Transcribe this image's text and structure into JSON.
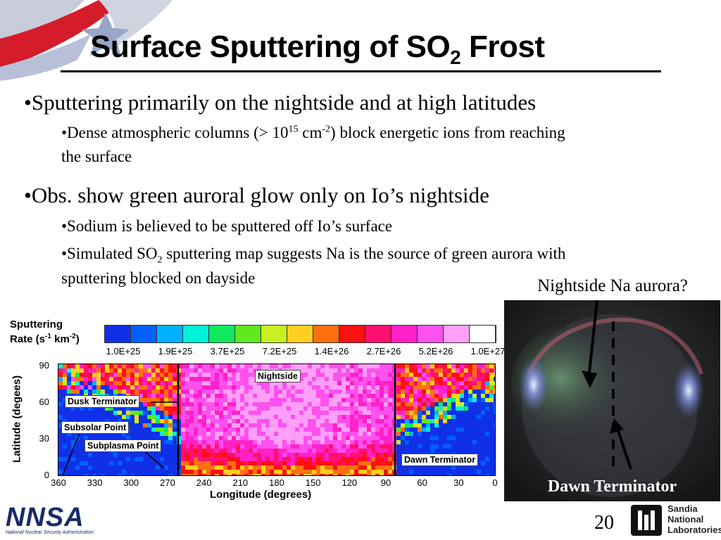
{
  "slide": {
    "title_main": "Surface Sputtering of SO",
    "title_sub": "2",
    "title_end": " Frost",
    "page_number": "20"
  },
  "bullets": {
    "b1": "•Sputtering primarily on the nightside and at high latitudes",
    "b1_1_a": "•Dense atmospheric columns (> 10",
    "b1_1_sup1": "15",
    "b1_1_b": " cm",
    "b1_1_sup2": "-2",
    "b1_1_c": ") block energetic ions from reaching",
    "b1_1_line2": "the surface",
    "b2": "•Obs. show green auroral glow only on Io’s nightside",
    "b2_1": "•Sodium is believed to be sputtered off Io’s surface",
    "b2_2_a": "•Simulated SO",
    "b2_2_sub": "2",
    "b2_2_b": " sputtering map suggests Na is the source of green aurora with",
    "b2_2_line2": "sputtering blocked on dayside"
  },
  "map": {
    "colorbar_title_1": "Sputtering",
    "colorbar_title_2": "Rate (s",
    "colorbar_sup1": "-1",
    "colorbar_mid": " km",
    "colorbar_sup2": "-2",
    "colorbar_end": ")",
    "colorbar_labels": [
      "1.0E+25",
      "1.9E+25",
      "3.7E+25",
      "7.2E+25",
      "1.4E+26",
      "2.7E+26",
      "5.2E+26",
      "1.0E+27"
    ],
    "colorbar_colors": [
      "#1030e8",
      "#0060ff",
      "#00b0ff",
      "#00f0d8",
      "#10e860",
      "#60e820",
      "#c8f020",
      "#ffd020",
      "#ff7010",
      "#ff1010",
      "#ff1070",
      "#ff20c8",
      "#ff50f0",
      "#ffa0f8",
      "#ffffff"
    ],
    "ylabel": "Latitude (degees)",
    "xlabel": "Longitude (degrees)",
    "y_ticks": [
      "90",
      "60",
      "30",
      "0"
    ],
    "x_ticks": [
      "360",
      "330",
      "300",
      "270",
      "240",
      "210",
      "180",
      "150",
      "120",
      "90",
      "60",
      "30",
      "0"
    ],
    "labels": {
      "nightside": "Nightside",
      "dusk": "Dusk Terminator",
      "subsolar": "Subsolar Point",
      "subplasma": "Subplasma Point",
      "dawn": "Dawn Terminator"
    }
  },
  "photo": {
    "caption_top": "Nightside Na aurora?",
    "caption_bottom": "Dawn Terminator"
  },
  "logos": {
    "nnsa_text": "NNSA",
    "nnsa_sub": "National Nuclear Security Administration",
    "sandia_1": "Sandia",
    "sandia_2": "National",
    "sandia_3": "Laboratories"
  }
}
